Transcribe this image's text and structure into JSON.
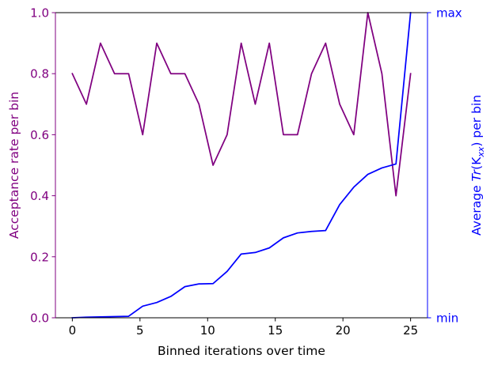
{
  "chart_data": {
    "type": "line",
    "xlabel": "Binned iterations over time",
    "ylabel_left": "Acceptance rate per bin",
    "ylabel_right_prefix": "Average ",
    "ylabel_right_italic": "Tr",
    "ylabel_right_open": "(K",
    "ylabel_right_sub": "xx",
    "ylabel_right_suffix": ") per bin",
    "xlim": [
      -1.25,
      26.25
    ],
    "ylim_left": [
      0,
      1
    ],
    "ylim_right": [
      0,
      1
    ],
    "xticks": [
      0,
      5,
      10,
      15,
      20,
      25
    ],
    "xtick_labels": [
      "0",
      "5",
      "10",
      "15",
      "20",
      "25"
    ],
    "yticks_left": [
      0,
      0.2,
      0.4,
      0.6,
      0.8,
      1.0
    ],
    "ytick_labels_left": [
      "0.0",
      "0.2",
      "0.4",
      "0.6",
      "0.8",
      "1.0"
    ],
    "yticks_right": [
      0,
      1
    ],
    "ytick_labels_right": [
      "min",
      "max"
    ],
    "grid": false,
    "colors": {
      "left": "#800080",
      "right": "#0000ff",
      "axis": "#000000"
    },
    "series": [
      {
        "axis": "left",
        "color": "#800080",
        "x": [
          0,
          1.04,
          2.08,
          3.12,
          4.16,
          5.2,
          6.24,
          7.28,
          8.32,
          9.36,
          10.4,
          11.44,
          12.48,
          13.52,
          14.56,
          15.6,
          16.64,
          17.68,
          18.72,
          19.76,
          20.8,
          21.84,
          22.88,
          23.92,
          25
        ],
        "values": [
          0.8,
          0.7,
          0.9,
          0.8,
          0.8,
          0.6,
          0.9,
          0.8,
          0.8,
          0.7,
          0.5,
          0.6,
          0.9,
          0.7,
          0.9,
          0.6,
          0.6,
          0.8,
          0.9,
          0.7,
          0.6,
          1.0,
          0.8,
          0.4,
          0.8
        ]
      },
      {
        "axis": "right",
        "color": "#0000ff",
        "x": [
          0,
          1.04,
          2.08,
          3.12,
          4.16,
          5.2,
          6.24,
          7.28,
          8.32,
          9.36,
          10.4,
          11.44,
          12.48,
          13.52,
          14.56,
          15.6,
          16.64,
          17.68,
          18.72,
          19.76,
          20.8,
          21.84,
          22.88,
          23.92,
          25
        ],
        "values": [
          0.0,
          0.002,
          0.003,
          0.004,
          0.005,
          0.038,
          0.05,
          0.07,
          0.102,
          0.111,
          0.112,
          0.152,
          0.209,
          0.214,
          0.229,
          0.262,
          0.278,
          0.283,
          0.286,
          0.371,
          0.428,
          0.47,
          0.491,
          0.504,
          1.0
        ]
      }
    ]
  }
}
